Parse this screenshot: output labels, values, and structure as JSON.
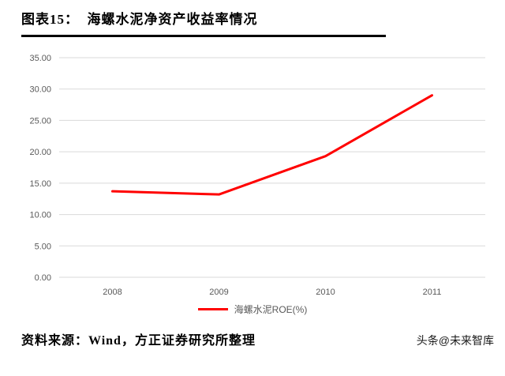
{
  "header": {
    "title": "图表15：  海螺水泥净资产收益率情况"
  },
  "chart_data": {
    "type": "line",
    "x": [
      "2008",
      "2009",
      "2010",
      "2011"
    ],
    "series": [
      {
        "name": "海螺水泥ROE(%)",
        "values": [
          13.7,
          13.2,
          19.3,
          29.0
        ],
        "color": "#ff0000"
      }
    ],
    "title": "海螺水泥净资产收益率情况",
    "xlabel": "",
    "ylabel": "",
    "ylim": [
      0,
      35
    ],
    "ytick_step": 5,
    "ytick_labels": [
      "0.00",
      "5.00",
      "10.00",
      "15.00",
      "20.00",
      "25.00",
      "30.00",
      "35.00"
    ],
    "grid": true,
    "grid_color": "#d9d9d9",
    "tick_color": "#595959",
    "legend_position": "bottom"
  },
  "footer": {
    "source": "资料来源：Wind，方正证券研究所整理",
    "watermark": "头条@未来智库"
  }
}
